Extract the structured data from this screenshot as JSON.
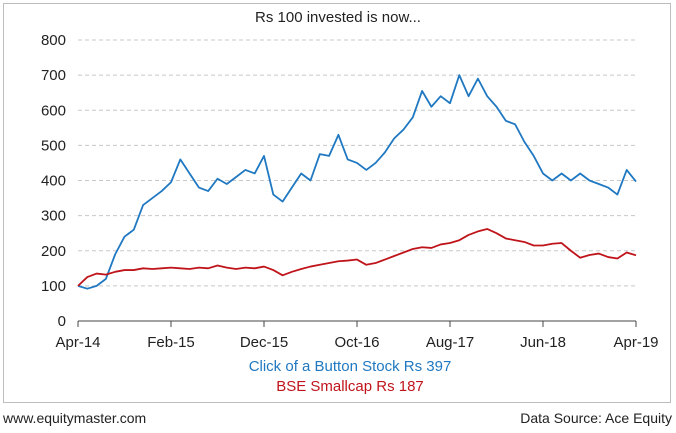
{
  "chart_data": {
    "type": "line",
    "title": "Rs 100 invested is now...",
    "xlabel": "",
    "ylabel": "",
    "x_range": [
      "2014-04",
      "2019-04"
    ],
    "ylim": [
      0,
      800
    ],
    "yticks": [
      0,
      100,
      200,
      300,
      400,
      500,
      600,
      700,
      800
    ],
    "xtick_labels": [
      "Apr-14",
      "Feb-15",
      "Dec-15",
      "Oct-16",
      "Aug-17",
      "Jun-18",
      "Apr-19"
    ],
    "grid": true,
    "legend_position": "bottom-center",
    "series": [
      {
        "name": "Click of a Button Stock Rs 397",
        "color": "#1f78c1",
        "points": [
          [
            "2014-04",
            100
          ],
          [
            "2014-05",
            92
          ],
          [
            "2014-06",
            100
          ],
          [
            "2014-07",
            120
          ],
          [
            "2014-08",
            190
          ],
          [
            "2014-09",
            240
          ],
          [
            "2014-10",
            260
          ],
          [
            "2014-11",
            330
          ],
          [
            "2014-12",
            350
          ],
          [
            "2015-01",
            370
          ],
          [
            "2015-02",
            395
          ],
          [
            "2015-03",
            460
          ],
          [
            "2015-04",
            420
          ],
          [
            "2015-05",
            380
          ],
          [
            "2015-06",
            370
          ],
          [
            "2015-07",
            405
          ],
          [
            "2015-08",
            390
          ],
          [
            "2015-09",
            410
          ],
          [
            "2015-10",
            430
          ],
          [
            "2015-11",
            420
          ],
          [
            "2015-12",
            470
          ],
          [
            "2016-01",
            360
          ],
          [
            "2016-02",
            340
          ],
          [
            "2016-03",
            380
          ],
          [
            "2016-04",
            420
          ],
          [
            "2016-05",
            400
          ],
          [
            "2016-06",
            475
          ],
          [
            "2016-07",
            470
          ],
          [
            "2016-08",
            530
          ],
          [
            "2016-09",
            460
          ],
          [
            "2016-10",
            450
          ],
          [
            "2016-11",
            430
          ],
          [
            "2016-12",
            450
          ],
          [
            "2017-01",
            480
          ],
          [
            "2017-02",
            520
          ],
          [
            "2017-03",
            545
          ],
          [
            "2017-04",
            580
          ],
          [
            "2017-05",
            655
          ],
          [
            "2017-06",
            610
          ],
          [
            "2017-07",
            640
          ],
          [
            "2017-08",
            620
          ],
          [
            "2017-09",
            700
          ],
          [
            "2017-10",
            640
          ],
          [
            "2017-11",
            690
          ],
          [
            "2017-12",
            640
          ],
          [
            "2018-01",
            610
          ],
          [
            "2018-02",
            570
          ],
          [
            "2018-03",
            560
          ],
          [
            "2018-04",
            510
          ],
          [
            "2018-05",
            470
          ],
          [
            "2018-06",
            420
          ],
          [
            "2018-07",
            400
          ],
          [
            "2018-08",
            420
          ],
          [
            "2018-09",
            400
          ],
          [
            "2018-10",
            420
          ],
          [
            "2018-11",
            400
          ],
          [
            "2018-12",
            390
          ],
          [
            "2019-01",
            380
          ],
          [
            "2019-02",
            360
          ],
          [
            "2019-03",
            430
          ],
          [
            "2019-04",
            397
          ]
        ]
      },
      {
        "name": "BSE Smallcap Rs 187",
        "color": "#c0141b",
        "points": [
          [
            "2014-04",
            100
          ],
          [
            "2014-05",
            125
          ],
          [
            "2014-06",
            135
          ],
          [
            "2014-07",
            132
          ],
          [
            "2014-08",
            140
          ],
          [
            "2014-09",
            145
          ],
          [
            "2014-10",
            145
          ],
          [
            "2014-11",
            150
          ],
          [
            "2014-12",
            148
          ],
          [
            "2015-01",
            150
          ],
          [
            "2015-02",
            152
          ],
          [
            "2015-03",
            150
          ],
          [
            "2015-04",
            148
          ],
          [
            "2015-05",
            152
          ],
          [
            "2015-06",
            150
          ],
          [
            "2015-07",
            158
          ],
          [
            "2015-08",
            152
          ],
          [
            "2015-09",
            148
          ],
          [
            "2015-10",
            152
          ],
          [
            "2015-11",
            150
          ],
          [
            "2015-12",
            155
          ],
          [
            "2016-01",
            145
          ],
          [
            "2016-02",
            130
          ],
          [
            "2016-03",
            140
          ],
          [
            "2016-04",
            148
          ],
          [
            "2016-05",
            155
          ],
          [
            "2016-06",
            160
          ],
          [
            "2016-07",
            165
          ],
          [
            "2016-08",
            170
          ],
          [
            "2016-09",
            172
          ],
          [
            "2016-10",
            175
          ],
          [
            "2016-11",
            160
          ],
          [
            "2016-12",
            165
          ],
          [
            "2017-01",
            175
          ],
          [
            "2017-02",
            185
          ],
          [
            "2017-03",
            195
          ],
          [
            "2017-04",
            205
          ],
          [
            "2017-05",
            210
          ],
          [
            "2017-06",
            208
          ],
          [
            "2017-07",
            218
          ],
          [
            "2017-08",
            222
          ],
          [
            "2017-09",
            230
          ],
          [
            "2017-10",
            245
          ],
          [
            "2017-11",
            255
          ],
          [
            "2017-12",
            262
          ],
          [
            "2018-01",
            250
          ],
          [
            "2018-02",
            235
          ],
          [
            "2018-03",
            230
          ],
          [
            "2018-04",
            225
          ],
          [
            "2018-05",
            215
          ],
          [
            "2018-06",
            215
          ],
          [
            "2018-07",
            220
          ],
          [
            "2018-08",
            222
          ],
          [
            "2018-09",
            200
          ],
          [
            "2018-10",
            180
          ],
          [
            "2018-11",
            188
          ],
          [
            "2018-12",
            192
          ],
          [
            "2019-01",
            182
          ],
          [
            "2019-02",
            178
          ],
          [
            "2019-03",
            195
          ],
          [
            "2019-04",
            187
          ]
        ]
      }
    ]
  },
  "footer": {
    "left": "www.equitymaster.com",
    "right": "Data Source: Ace Equity"
  }
}
